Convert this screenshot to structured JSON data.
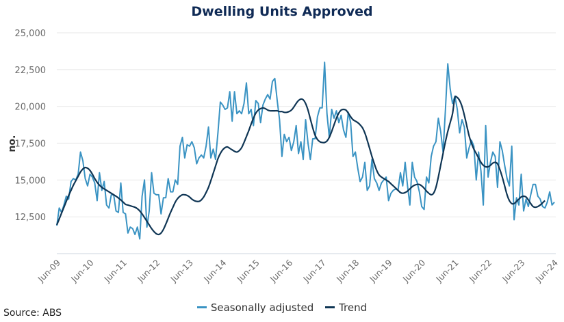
{
  "chart_data": {
    "type": "line",
    "title": "Dwelling Units Approved",
    "xlabel": "",
    "ylabel": "no.",
    "ylim": [
      10000,
      25000
    ],
    "yticks": [
      12500,
      15000,
      17500,
      20000,
      22500,
      25000
    ],
    "ytick_labels": [
      "12,500",
      "15,000",
      "17,500",
      "20,000",
      "22,500",
      "25,000"
    ],
    "xticks": [
      "Jun-09",
      "Jun-10",
      "Jun-11",
      "Jun-12",
      "Jun-13",
      "Jun-14",
      "Jun-15",
      "Jun-16",
      "Jun-17",
      "Jun-18",
      "Jun-19",
      "Jun-20",
      "Jun-21",
      "Jun-22",
      "Jun-23",
      "Jun-24"
    ],
    "x_start": "Jun-09",
    "x_frequency": "monthly",
    "grid": true,
    "legend_position": "bottom",
    "series": [
      {
        "name": "Seasonally adjusted",
        "color": "#3a93c3",
        "values": [
          11900,
          13100,
          12800,
          13300,
          13900,
          13700,
          14900,
          15100,
          15000,
          15400,
          16900,
          16300,
          15100,
          14600,
          15400,
          15200,
          14800,
          13600,
          15500,
          14300,
          14900,
          13300,
          13100,
          14000,
          14000,
          12900,
          12800,
          14800,
          12800,
          12700,
          11400,
          11800,
          11700,
          11300,
          11800,
          11000,
          13900,
          15000,
          11800,
          12900,
          15500,
          14100,
          14000,
          14000,
          12700,
          13800,
          13800,
          15100,
          14200,
          14200,
          15000,
          14700,
          17300,
          17900,
          16500,
          17400,
          17300,
          17600,
          17200,
          16100,
          16500,
          16700,
          16500,
          17300,
          18600,
          16500,
          17100,
          16400,
          18200,
          20300,
          20100,
          19800,
          19900,
          21000,
          19000,
          21000,
          19500,
          19700,
          19500,
          20200,
          21600,
          19500,
          19800,
          18700,
          20400,
          20200,
          18900,
          20100,
          20500,
          20800,
          20500,
          21700,
          21900,
          20400,
          19100,
          16600,
          18100,
          17600,
          17900,
          17000,
          17600,
          18700,
          16800,
          17600,
          16400,
          19100,
          17500,
          16400,
          17800,
          17800,
          19300,
          19900,
          19900,
          23000,
          19500,
          17900,
          19800,
          19200,
          19700,
          18900,
          19400,
          18400,
          17900,
          19600,
          18900,
          16600,
          16900,
          15800,
          14900,
          15200,
          16200,
          14300,
          14600,
          16400,
          15100,
          14800,
          14300,
          14800,
          15000,
          15200,
          13600,
          14100,
          14300,
          14400,
          14300,
          15500,
          14600,
          16200,
          14600,
          13300,
          16200,
          15200,
          14900,
          14200,
          13200,
          13000,
          15200,
          14800,
          16600,
          17300,
          17600,
          19200,
          18300,
          16900,
          19800,
          22900,
          21200,
          20200,
          20700,
          19800,
          18200,
          19100,
          18600,
          16500,
          17200,
          17700,
          17300,
          15000,
          16900,
          15600,
          13300,
          18700,
          15200,
          16200,
          16900,
          16600,
          14500,
          17600,
          17000,
          16000,
          15100,
          14600,
          17300,
          12300,
          13800,
          13300,
          15400,
          12900,
          13700,
          13200,
          14000,
          14700,
          14700,
          13900,
          13700,
          13200,
          13100,
          13500,
          14200,
          13300,
          13500
        ]
      },
      {
        "name": "Trend",
        "color": "#0f3554",
        "values": [
          11950,
          12350,
          12750,
          13150,
          13550,
          13950,
          14300,
          14650,
          14950,
          15250,
          15550,
          15750,
          15850,
          15800,
          15650,
          15400,
          15100,
          14850,
          14650,
          14500,
          14400,
          14300,
          14200,
          14100,
          14000,
          13900,
          13780,
          13650,
          13500,
          13350,
          13300,
          13250,
          13200,
          13150,
          13050,
          12900,
          12700,
          12450,
          12200,
          11950,
          11700,
          11500,
          11350,
          11300,
          11400,
          11650,
          12000,
          12400,
          12800,
          13150,
          13500,
          13750,
          13900,
          14000,
          14000,
          13950,
          13850,
          13700,
          13600,
          13550,
          13550,
          13650,
          13850,
          14150,
          14500,
          14950,
          15450,
          15950,
          16450,
          16800,
          17050,
          17200,
          17250,
          17150,
          17050,
          16950,
          16900,
          17000,
          17200,
          17550,
          17950,
          18350,
          18800,
          19200,
          19550,
          19750,
          19850,
          19900,
          19850,
          19750,
          19700,
          19700,
          19700,
          19700,
          19650,
          19650,
          19600,
          19600,
          19650,
          19750,
          19950,
          20200,
          20400,
          20500,
          20450,
          20200,
          19750,
          19150,
          18550,
          18050,
          17750,
          17600,
          17550,
          17550,
          17650,
          17900,
          18300,
          18750,
          19200,
          19550,
          19750,
          19800,
          19750,
          19550,
          19300,
          19100,
          19000,
          18900,
          18750,
          18550,
          18200,
          17700,
          17150,
          16600,
          16100,
          15650,
          15350,
          15200,
          15100,
          15000,
          14900,
          14750,
          14600,
          14450,
          14300,
          14150,
          14100,
          14150,
          14250,
          14400,
          14550,
          14650,
          14700,
          14700,
          14600,
          14450,
          14250,
          14100,
          14000,
          14100,
          14500,
          15200,
          16000,
          16800,
          17600,
          18300,
          18900,
          19500,
          20600,
          20600,
          20400,
          20000,
          19400,
          18700,
          18000,
          17500,
          17100,
          16800,
          16500,
          16200,
          16000,
          15900,
          15900,
          16000,
          16150,
          16200,
          16100,
          15700,
          15200,
          14600,
          14000,
          13600,
          13400,
          13400,
          13550,
          13700,
          13850,
          13900,
          13850,
          13650,
          13400,
          13200,
          13150,
          13200,
          13300,
          13450,
          13600
        ]
      }
    ]
  },
  "legend": {
    "items": [
      {
        "label": "Seasonally adjusted"
      },
      {
        "label": "Trend"
      }
    ]
  },
  "source": "Source: ABS"
}
